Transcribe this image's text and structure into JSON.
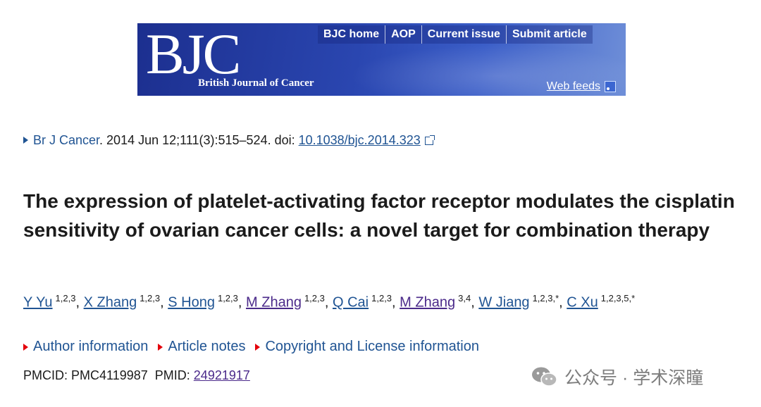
{
  "banner": {
    "logo": "BJC",
    "journal_name": "British Journal of Cancer",
    "nav": [
      "BJC home",
      "AOP",
      "Current issue",
      "Submit article"
    ],
    "web_feeds": "Web feeds"
  },
  "citation": {
    "journal": "Br J Cancer",
    "details": ". 2014 Jun 12;111(3):515–524. doi: ",
    "doi": "10.1038/bjc.2014.323"
  },
  "title": "The expression of platelet-activating factor receptor modulates the cisplatin sensitivity of ovarian cancer cells: a novel target for combination therapy",
  "authors": [
    {
      "name": "Y Yu",
      "aff": "1,2,3"
    },
    {
      "name": "X Zhang",
      "aff": "1,2,3"
    },
    {
      "name": "S Hong",
      "aff": "1,2,3"
    },
    {
      "name": "M Zhang",
      "aff": "1,2,3"
    },
    {
      "name": "Q Cai",
      "aff": "1,2,3"
    },
    {
      "name": "M Zhang",
      "aff": "3,4"
    },
    {
      "name": "W Jiang",
      "aff": "1,2,3,*"
    },
    {
      "name": "C Xu",
      "aff": "1,2,3,5,*"
    }
  ],
  "info_links": [
    "Author information",
    "Article notes",
    "Copyright and License information"
  ],
  "ids": {
    "pmcid_label": "PMCID: ",
    "pmcid": "PMC4119987",
    "pmid_label": "PMID: ",
    "pmid": "24921917"
  },
  "watermark": {
    "text": "公众号 · 学术深瞳",
    "icon": "wechat-icon"
  },
  "colors": {
    "link": "#205493",
    "visited": "#4b2a8a",
    "arrow": "#e4000b",
    "banner": "#2a46b0"
  }
}
